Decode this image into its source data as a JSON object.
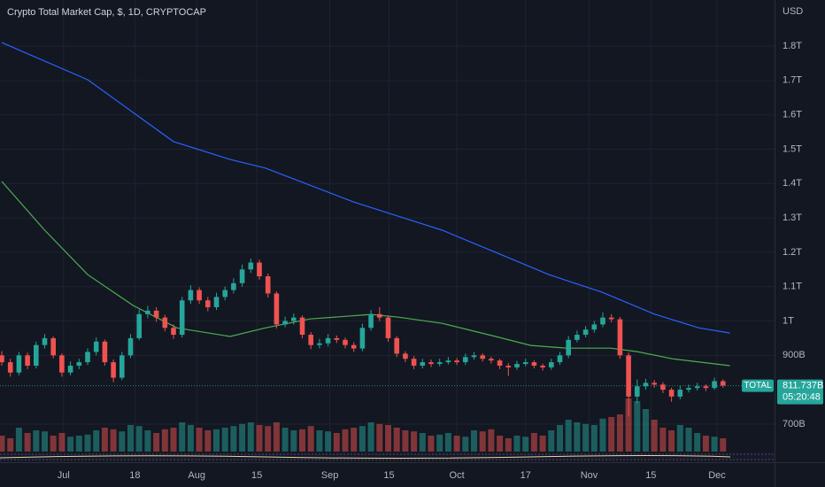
{
  "chart_data": {
    "type": "candlestick",
    "title": "Crypto Total Market Cap, $, 1D, CRYPTOCAP",
    "currency": "USD",
    "xlim": [
      0,
      90
    ],
    "xticks": [
      {
        "value": 7.2,
        "label": "Jul"
      },
      {
        "value": 15.5,
        "label": "18"
      },
      {
        "value": 22.7,
        "label": "Aug"
      },
      {
        "value": 29.7,
        "label": "15"
      },
      {
        "value": 38.2,
        "label": "Sep"
      },
      {
        "value": 45.1,
        "label": "15"
      },
      {
        "value": 53,
        "label": "Oct"
      },
      {
        "value": 61,
        "label": "17"
      },
      {
        "value": 68.4,
        "label": "Nov"
      },
      {
        "value": 75.6,
        "label": "15"
      },
      {
        "value": 83.3,
        "label": "Dec"
      }
    ],
    "ylim": [
      620,
      1934
    ],
    "yticks": [
      {
        "value": 1800,
        "label": "1.8T"
      },
      {
        "value": 1700,
        "label": "1.7T"
      },
      {
        "value": 1600,
        "label": "1.6T"
      },
      {
        "value": 1500,
        "label": "1.5T"
      },
      {
        "value": 1400,
        "label": "1.4T"
      },
      {
        "value": 1300,
        "label": "1.3T"
      },
      {
        "value": 1200,
        "label": "1.2T"
      },
      {
        "value": 1100,
        "label": "1.1T"
      },
      {
        "value": 1000,
        "label": "1T"
      },
      {
        "value": 900,
        "label": "900B"
      },
      {
        "value": 700,
        "label": "700B"
      }
    ],
    "grid": true,
    "up_color": "#26a69a",
    "down_color": "#ef5350",
    "ohlc": [
      [
        900,
        912,
        870,
        880
      ],
      [
        880,
        890,
        838,
        850
      ],
      [
        850,
        910,
        842,
        900
      ],
      [
        900,
        908,
        860,
        870
      ],
      [
        870,
        940,
        862,
        930
      ],
      [
        930,
        962,
        920,
        950
      ],
      [
        950,
        955,
        892,
        900
      ],
      [
        900,
        906,
        838,
        850
      ],
      [
        850,
        882,
        842,
        870
      ],
      [
        870,
        890,
        860,
        880
      ],
      [
        880,
        920,
        872,
        910
      ],
      [
        910,
        952,
        900,
        940
      ],
      [
        940,
        946,
        870,
        880
      ],
      [
        880,
        888,
        822,
        835
      ],
      [
        835,
        910,
        828,
        900
      ],
      [
        900,
        962,
        892,
        950
      ],
      [
        950,
        1034,
        944,
        1020
      ],
      [
        1020,
        1044,
        1008,
        1030
      ],
      [
        1030,
        1040,
        998,
        1010
      ],
      [
        1010,
        1018,
        970,
        980
      ],
      [
        980,
        990,
        948,
        960
      ],
      [
        960,
        1070,
        952,
        1060
      ],
      [
        1060,
        1104,
        1050,
        1090
      ],
      [
        1090,
        1098,
        1050,
        1060
      ],
      [
        1060,
        1070,
        1028,
        1040
      ],
      [
        1040,
        1082,
        1032,
        1070
      ],
      [
        1070,
        1100,
        1060,
        1090
      ],
      [
        1090,
        1124,
        1080,
        1110
      ],
      [
        1110,
        1164,
        1100,
        1150
      ],
      [
        1150,
        1182,
        1140,
        1170
      ],
      [
        1170,
        1178,
        1120,
        1130
      ],
      [
        1130,
        1138,
        1068,
        1080
      ],
      [
        1080,
        1086,
        978,
        990
      ],
      [
        990,
        1012,
        982,
        1000
      ],
      [
        1000,
        1022,
        990,
        1010
      ],
      [
        1010,
        1016,
        950,
        960
      ],
      [
        960,
        968,
        918,
        930
      ],
      [
        930,
        948,
        920,
        935
      ],
      [
        935,
        962,
        926,
        950
      ],
      [
        950,
        958,
        936,
        945
      ],
      [
        945,
        952,
        920,
        930
      ],
      [
        930,
        938,
        910,
        920
      ],
      [
        920,
        992,
        912,
        980
      ],
      [
        980,
        1032,
        972,
        1020
      ],
      [
        1020,
        1040,
        1000,
        1010
      ],
      [
        1010,
        1016,
        940,
        950
      ],
      [
        950,
        956,
        895,
        905
      ],
      [
        905,
        912,
        880,
        890
      ],
      [
        890,
        898,
        860,
        870
      ],
      [
        870,
        890,
        862,
        880
      ],
      [
        880,
        888,
        866,
        875
      ],
      [
        875,
        890,
        868,
        880
      ],
      [
        880,
        895,
        874,
        885
      ],
      [
        885,
        892,
        872,
        880
      ],
      [
        880,
        905,
        872,
        895
      ],
      [
        895,
        910,
        888,
        900
      ],
      [
        900,
        906,
        882,
        890
      ],
      [
        890,
        896,
        876,
        885
      ],
      [
        885,
        890,
        860,
        870
      ],
      [
        870,
        878,
        840,
        865
      ],
      [
        865,
        884,
        858,
        875
      ],
      [
        875,
        890,
        868,
        880
      ],
      [
        880,
        886,
        862,
        870
      ],
      [
        870,
        876,
        856,
        865
      ],
      [
        865,
        890,
        858,
        880
      ],
      [
        880,
        910,
        872,
        900
      ],
      [
        900,
        956,
        892,
        945
      ],
      [
        945,
        972,
        938,
        960
      ],
      [
        960,
        985,
        952,
        975
      ],
      [
        975,
        1000,
        966,
        990
      ],
      [
        990,
        1025,
        982,
        1010
      ],
      [
        1010,
        1020,
        996,
        1005
      ],
      [
        1005,
        1012,
        890,
        900
      ],
      [
        900,
        908,
        722,
        780
      ],
      [
        780,
        830,
        760,
        810
      ],
      [
        810,
        832,
        800,
        820
      ],
      [
        820,
        828,
        806,
        815
      ],
      [
        815,
        822,
        790,
        800
      ],
      [
        800,
        806,
        765,
        780
      ],
      [
        780,
        812,
        772,
        800
      ],
      [
        800,
        815,
        792,
        805
      ],
      [
        805,
        820,
        798,
        810
      ],
      [
        810,
        816,
        796,
        805
      ],
      [
        805,
        835,
        800,
        825
      ],
      [
        825,
        830,
        806,
        812
      ]
    ],
    "volume": [
      30,
      25,
      45,
      35,
      40,
      38,
      30,
      35,
      28,
      30,
      32,
      40,
      45,
      42,
      38,
      50,
      48,
      40,
      35,
      42,
      45,
      55,
      50,
      45,
      40,
      42,
      45,
      48,
      52,
      55,
      50,
      48,
      55,
      45,
      40,
      42,
      48,
      40,
      38,
      35,
      42,
      45,
      48,
      55,
      52,
      50,
      45,
      40,
      38,
      35,
      30,
      32,
      35,
      30,
      28,
      40,
      38,
      42,
      30,
      25,
      30,
      28,
      35,
      30,
      40,
      50,
      60,
      55,
      52,
      50,
      62,
      65,
      70,
      100,
      95,
      80,
      60,
      45,
      40,
      50,
      45,
      35,
      30,
      28,
      25
    ],
    "series": [
      {
        "color": "#2962ff",
        "x": [
          0,
          10,
          20,
          26.6,
          30.7,
          41,
          51.3,
          57.5,
          63.7,
          69.9,
          76,
          81.2,
          84.8
        ],
        "values": [
          1810,
          1702,
          1522,
          1470,
          1445,
          1346,
          1264,
          1200,
          1135,
          1084,
          1020,
          980,
          965
        ]
      },
      {
        "color": "#4caf50",
        "x": [
          0,
          5,
          10,
          15.3,
          20.4,
          26.6,
          30.7,
          35.9,
          43,
          46.2,
          51.3,
          57.5,
          61.6,
          65.8,
          70.9,
          74,
          78.1,
          84.8
        ],
        "values": [
          1406,
          1264,
          1135,
          1045,
          980,
          955,
          980,
          1006,
          1019,
          1011,
          993,
          955,
          929,
          921,
          921,
          911,
          890,
          870
        ]
      }
    ],
    "symbol": "TOTAL",
    "last_value": 811.737,
    "last_value_label": "811.737B",
    "countdown": "05:20:48"
  }
}
